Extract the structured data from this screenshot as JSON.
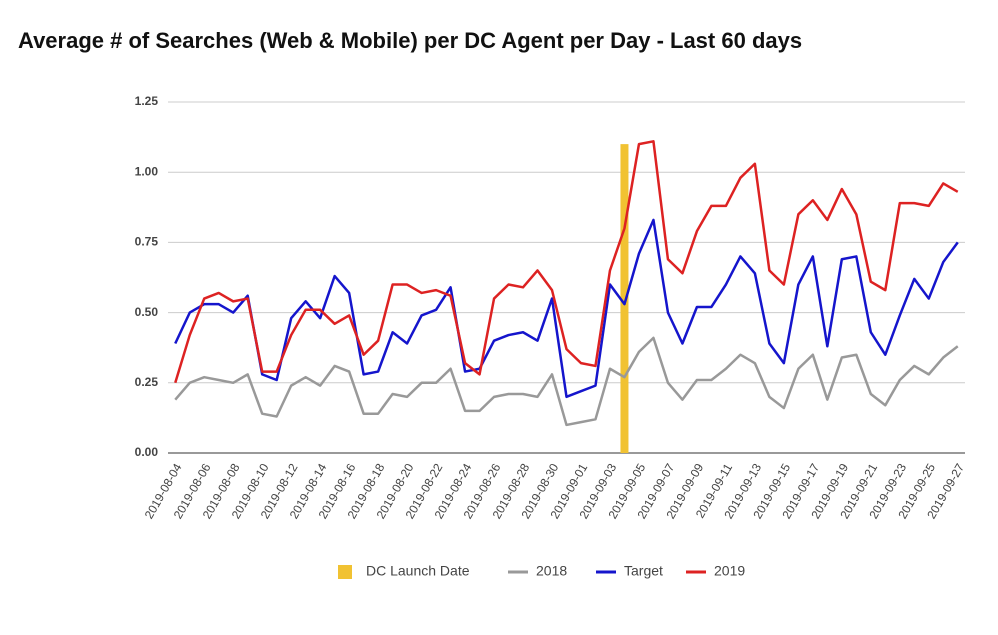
{
  "chart_data": {
    "type": "line",
    "title": "Average # of Searches (Web & Mobile) per DC Agent per Day - Last 60 days",
    "categories": [
      "2019-08-04",
      null,
      "2019-08-06",
      null,
      "2019-08-08",
      null,
      "2019-08-10",
      null,
      "2019-08-12",
      null,
      "2019-08-14",
      null,
      "2019-08-16",
      null,
      "2019-08-18",
      null,
      "2019-08-20",
      null,
      "2019-08-22",
      null,
      "2019-08-24",
      null,
      "2019-08-26",
      null,
      "2019-08-28",
      null,
      "2019-08-30",
      null,
      "2019-09-01",
      null,
      "2019-09-03",
      null,
      "2019-09-05",
      null,
      "2019-09-07",
      null,
      "2019-09-09",
      null,
      "2019-09-11",
      null,
      "2019-09-13",
      null,
      "2019-09-15",
      null,
      "2019-09-17",
      null,
      "2019-09-19",
      null,
      "2019-09-21",
      null,
      "2019-09-23",
      null,
      "2019-09-25",
      null,
      "2019-09-27"
    ],
    "series": [
      {
        "name": "DC Launch Date",
        "type": "bar",
        "color": "#f1c232",
        "values": [
          null,
          null,
          null,
          null,
          null,
          null,
          null,
          null,
          null,
          null,
          null,
          null,
          null,
          null,
          null,
          null,
          null,
          null,
          null,
          null,
          null,
          null,
          null,
          null,
          null,
          null,
          null,
          null,
          null,
          null,
          null,
          1.1,
          null,
          null,
          null,
          null,
          null,
          null,
          null,
          null,
          null,
          null,
          null,
          null,
          null,
          null,
          null,
          null,
          null,
          null,
          null,
          null,
          null,
          null,
          null
        ]
      },
      {
        "name": "2018",
        "color": "#999999",
        "values": [
          0.19,
          0.25,
          0.27,
          0.26,
          0.25,
          0.28,
          0.14,
          0.13,
          0.24,
          0.27,
          0.24,
          0.31,
          0.29,
          0.14,
          0.14,
          0.21,
          0.2,
          0.25,
          0.25,
          0.3,
          0.15,
          0.15,
          0.2,
          0.21,
          0.21,
          0.2,
          0.28,
          0.1,
          0.11,
          0.12,
          0.3,
          0.27,
          0.36,
          0.41,
          0.25,
          0.19,
          0.26,
          0.26,
          0.3,
          0.35,
          0.32,
          0.2,
          0.16,
          0.3,
          0.35,
          0.19,
          0.34,
          0.35,
          0.21,
          0.17,
          0.26,
          0.31,
          0.28,
          0.34,
          0.38
        ]
      },
      {
        "name": "Target",
        "color": "#1515cc",
        "values": [
          0.39,
          0.5,
          0.53,
          0.53,
          0.5,
          0.56,
          0.28,
          0.26,
          0.48,
          0.54,
          0.48,
          0.63,
          0.57,
          0.28,
          0.29,
          0.43,
          0.39,
          0.49,
          0.51,
          0.59,
          0.29,
          0.3,
          0.4,
          0.42,
          0.43,
          0.4,
          0.55,
          0.2,
          0.22,
          0.24,
          0.6,
          0.53,
          0.71,
          0.83,
          0.5,
          0.39,
          0.52,
          0.52,
          0.6,
          0.7,
          0.64,
          0.39,
          0.32,
          0.6,
          0.7,
          0.38,
          0.69,
          0.7,
          0.43,
          0.35,
          0.49,
          0.62,
          0.55,
          0.68,
          0.75
        ]
      },
      {
        "name": "2019",
        "color": "#dd2222",
        "values": [
          0.25,
          0.42,
          0.55,
          0.57,
          0.54,
          0.55,
          0.29,
          0.29,
          0.42,
          0.51,
          0.51,
          0.46,
          0.49,
          0.35,
          0.4,
          0.6,
          0.6,
          0.57,
          0.58,
          0.56,
          0.32,
          0.28,
          0.55,
          0.6,
          0.59,
          0.65,
          0.58,
          0.37,
          0.32,
          0.31,
          0.65,
          0.8,
          1.1,
          1.11,
          0.69,
          0.64,
          0.79,
          0.88,
          0.88,
          0.98,
          1.03,
          0.65,
          0.6,
          0.85,
          0.9,
          0.83,
          0.94,
          0.85,
          0.61,
          0.58,
          0.89,
          0.89,
          0.88,
          0.96,
          0.93
        ]
      }
    ],
    "ylim": [
      0,
      1.25
    ],
    "yticks": [
      {
        "value": 0,
        "label": "0.00"
      },
      {
        "value": 0.25,
        "label": "0.25"
      },
      {
        "value": 0.5,
        "label": "0.50"
      },
      {
        "value": 0.75,
        "label": "0.75"
      },
      {
        "value": 1,
        "label": "1.00"
      },
      {
        "value": 1.25,
        "label": "1.25"
      }
    ],
    "grid": true,
    "legend": "bottom"
  }
}
